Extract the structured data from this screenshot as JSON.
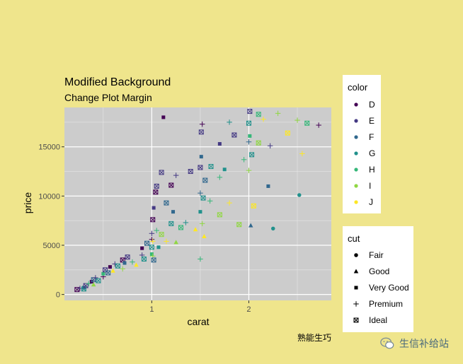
{
  "chart_data": {
    "type": "scatter",
    "title": "Modified Background",
    "subtitle": "Change Plot Margin",
    "xlabel": "carat",
    "ylabel": "price",
    "xlim": [
      0.1,
      2.85
    ],
    "ylim": [
      -600,
      19000
    ],
    "x_ticks": [
      1,
      2
    ],
    "y_ticks": [
      0,
      5000,
      10000,
      15000
    ],
    "y_tick_labels": [
      "0",
      "5000",
      "10000",
      "15000"
    ],
    "grid": true,
    "caption": "熟能生巧",
    "legends": [
      {
        "title": "color",
        "items": [
          {
            "label": "D",
            "color": "#440154"
          },
          {
            "label": "E",
            "color": "#443983"
          },
          {
            "label": "F",
            "color": "#31688e"
          },
          {
            "label": "G",
            "color": "#21918c"
          },
          {
            "label": "H",
            "color": "#35b779"
          },
          {
            "label": "I",
            "color": "#90d743"
          },
          {
            "label": "J",
            "color": "#fde725"
          }
        ]
      },
      {
        "title": "cut",
        "items": [
          {
            "label": "Fair",
            "shape": "circle"
          },
          {
            "label": "Good",
            "shape": "triangle"
          },
          {
            "label": "Very Good",
            "shape": "square"
          },
          {
            "label": "Premium",
            "shape": "plus"
          },
          {
            "label": "Ideal",
            "shape": "boxed-x"
          }
        ]
      }
    ],
    "points": [
      [
        0.23,
        500,
        "D",
        "Ideal"
      ],
      [
        0.26,
        620,
        "E",
        "Premium"
      ],
      [
        0.3,
        700,
        "F",
        "Very Good"
      ],
      [
        0.3,
        560,
        "G",
        "Ideal"
      ],
      [
        0.32,
        900,
        "E",
        "Ideal"
      ],
      [
        0.35,
        1100,
        "H",
        "Premium"
      ],
      [
        0.38,
        1300,
        "D",
        "Very Good"
      ],
      [
        0.4,
        1000,
        "I",
        "Good"
      ],
      [
        0.4,
        1500,
        "F",
        "Ideal"
      ],
      [
        0.42,
        1700,
        "E",
        "Premium"
      ],
      [
        0.45,
        1400,
        "G",
        "Ideal"
      ],
      [
        0.5,
        1800,
        "D",
        "Premium"
      ],
      [
        0.5,
        2100,
        "H",
        "Very Good"
      ],
      [
        0.52,
        2500,
        "E",
        "Ideal"
      ],
      [
        0.55,
        2200,
        "F",
        "Ideal"
      ],
      [
        0.57,
        2800,
        "D",
        "Very Good"
      ],
      [
        0.6,
        2400,
        "J",
        "Good"
      ],
      [
        0.62,
        3100,
        "E",
        "Premium"
      ],
      [
        0.65,
        2900,
        "G",
        "Ideal"
      ],
      [
        0.7,
        3500,
        "D",
        "Ideal"
      ],
      [
        0.7,
        2600,
        "I",
        "Premium"
      ],
      [
        0.72,
        3200,
        "F",
        "Very Good"
      ],
      [
        0.75,
        3800,
        "E",
        "Ideal"
      ],
      [
        0.8,
        3300,
        "H",
        "Premium"
      ],
      [
        0.84,
        3000,
        "J",
        "Good"
      ],
      [
        0.9,
        4000,
        "E",
        "Premium"
      ],
      [
        0.9,
        4700,
        "D",
        "Very Good"
      ],
      [
        0.92,
        3600,
        "G",
        "Ideal"
      ],
      [
        0.95,
        5200,
        "F",
        "Ideal"
      ],
      [
        1.0,
        5600,
        "D",
        "Premium"
      ],
      [
        1.0,
        4800,
        "G",
        "Ideal"
      ],
      [
        1.0,
        4100,
        "H",
        "Very Good"
      ],
      [
        1.0,
        6200,
        "E",
        "Premium"
      ],
      [
        1.01,
        3900,
        "I",
        "Premium"
      ],
      [
        1.01,
        7600,
        "D",
        "Ideal"
      ],
      [
        1.01,
        5400,
        "J",
        "Premium"
      ],
      [
        1.02,
        8800,
        "E",
        "Very Good"
      ],
      [
        1.02,
        3500,
        "F",
        "Ideal"
      ],
      [
        1.04,
        10400,
        "D",
        "Ideal"
      ],
      [
        1.05,
        11000,
        "E",
        "Ideal"
      ],
      [
        1.05,
        6500,
        "H",
        "Premium"
      ],
      [
        1.07,
        4800,
        "G",
        "Very Good"
      ],
      [
        1.1,
        12400,
        "E",
        "Ideal"
      ],
      [
        1.1,
        6100,
        "I",
        "Ideal"
      ],
      [
        1.12,
        18000,
        "D",
        "Very Good"
      ],
      [
        1.15,
        5400,
        "J",
        "Premium"
      ],
      [
        1.15,
        9300,
        "F",
        "Ideal"
      ],
      [
        1.2,
        7200,
        "G",
        "Ideal"
      ],
      [
        1.2,
        11100,
        "D",
        "Ideal"
      ],
      [
        1.22,
        8400,
        "F",
        "Very Good"
      ],
      [
        1.25,
        5300,
        "I",
        "Good"
      ],
      [
        1.25,
        12100,
        "E",
        "Premium"
      ],
      [
        1.3,
        6800,
        "H",
        "Ideal"
      ],
      [
        1.35,
        7300,
        "G",
        "Premium"
      ],
      [
        1.4,
        12500,
        "E",
        "Ideal"
      ],
      [
        1.45,
        6600,
        "J",
        "Good"
      ],
      [
        1.5,
        3600,
        "H",
        "Premium"
      ],
      [
        1.5,
        8400,
        "G",
        "Very Good"
      ],
      [
        1.5,
        10300,
        "F",
        "Premium"
      ],
      [
        1.5,
        12900,
        "E",
        "Ideal"
      ],
      [
        1.51,
        14000,
        "F",
        "Very Good"
      ],
      [
        1.51,
        16500,
        "E",
        "Ideal"
      ],
      [
        1.52,
        17300,
        "D",
        "Premium"
      ],
      [
        1.52,
        7200,
        "I",
        "Premium"
      ],
      [
        1.53,
        9800,
        "G",
        "Ideal"
      ],
      [
        1.54,
        5900,
        "J",
        "Good"
      ],
      [
        1.55,
        11600,
        "F",
        "Ideal"
      ],
      [
        1.6,
        9500,
        "H",
        "Premium"
      ],
      [
        1.61,
        13000,
        "G",
        "Ideal"
      ],
      [
        1.7,
        11900,
        "H",
        "Premium"
      ],
      [
        1.7,
        8100,
        "I",
        "Ideal"
      ],
      [
        1.7,
        15300,
        "E",
        "Very Good"
      ],
      [
        1.75,
        12700,
        "G",
        "Very Good"
      ],
      [
        1.8,
        9300,
        "J",
        "Premium"
      ],
      [
        1.8,
        17500,
        "G",
        "Premium"
      ],
      [
        1.85,
        16200,
        "E",
        "Ideal"
      ],
      [
        1.9,
        7100,
        "I",
        "Ideal"
      ],
      [
        1.95,
        13700,
        "H",
        "Premium"
      ],
      [
        2.0,
        15500,
        "F",
        "Premium"
      ],
      [
        2.0,
        17400,
        "G",
        "Ideal"
      ],
      [
        2.0,
        12600,
        "I",
        "Premium"
      ],
      [
        2.01,
        18600,
        "E",
        "Ideal"
      ],
      [
        2.01,
        16100,
        "H",
        "Very Good"
      ],
      [
        2.02,
        7000,
        "F",
        "Good"
      ],
      [
        2.03,
        14200,
        "G",
        "Ideal"
      ],
      [
        2.05,
        9000,
        "J",
        "Ideal"
      ],
      [
        2.1,
        18300,
        "H",
        "Ideal"
      ],
      [
        2.1,
        15400,
        "I",
        "Ideal"
      ],
      [
        2.15,
        17800,
        "J",
        "Premium"
      ],
      [
        2.2,
        11000,
        "F",
        "Very Good"
      ],
      [
        2.22,
        15100,
        "E",
        "Premium"
      ],
      [
        2.25,
        6700,
        "G",
        "Fair"
      ],
      [
        2.3,
        18400,
        "I",
        "Premium"
      ],
      [
        2.4,
        16400,
        "J",
        "Ideal"
      ],
      [
        2.5,
        17700,
        "I",
        "Premium"
      ],
      [
        2.52,
        10100,
        "G",
        "Fair"
      ],
      [
        2.55,
        14300,
        "J",
        "Premium"
      ],
      [
        2.6,
        17400,
        "H",
        "Ideal"
      ],
      [
        2.72,
        17200,
        "D",
        "Premium"
      ]
    ]
  },
  "watermark_text": "生信补给站"
}
